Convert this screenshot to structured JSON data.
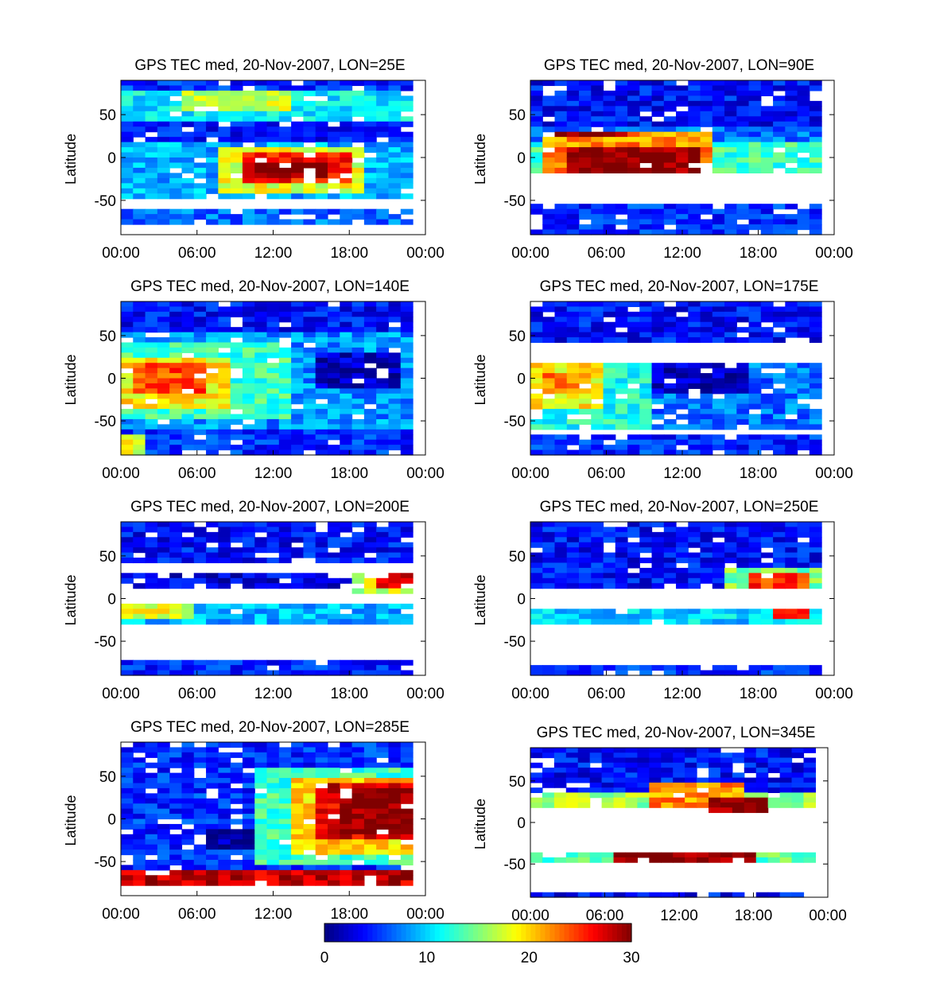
{
  "chart_data": [
    {
      "type": "heatmap",
      "title": "GPS TEC med, 20-Nov-2007, LON=25E",
      "ylabel": "Latitude",
      "xticks": [
        "00:00",
        "06:00",
        "12:00",
        "18:00",
        "00:00"
      ],
      "yticks": [
        "50",
        "0",
        "-50"
      ],
      "ylim": [
        -90,
        90
      ],
      "xlim_hours": [
        0,
        24
      ],
      "features": [
        {
          "t0": 0,
          "t1": 23,
          "l0": 75,
          "l1": 88,
          "v": 5
        },
        {
          "t0": 0,
          "t1": 23,
          "l0": 40,
          "l1": 75,
          "v": 11
        },
        {
          "t0": 5,
          "t1": 13,
          "l0": 55,
          "l1": 75,
          "v": 17
        },
        {
          "t0": 0,
          "t1": 23,
          "l0": 20,
          "l1": 40,
          "v": 4
        },
        {
          "t0": 0,
          "t1": 23,
          "l0": -45,
          "l1": 15,
          "v": 9
        },
        {
          "t0": 8,
          "t1": 19,
          "l0": -40,
          "l1": 12,
          "v": 18
        },
        {
          "t0": 10,
          "t1": 18,
          "l0": -30,
          "l1": 5,
          "v": 26
        },
        {
          "t0": 11,
          "t1": 16,
          "l0": -25,
          "l1": -5,
          "v": 30
        },
        {
          "t0": 0,
          "t1": 23,
          "l0": -80,
          "l1": -62,
          "v": 7
        }
      ]
    },
    {
      "type": "heatmap",
      "title": "GPS TEC med, 20-Nov-2007, LON=90E",
      "ylabel": "Latitude",
      "xticks": [
        "00:00",
        "06:00",
        "12:00",
        "18:00",
        "00:00"
      ],
      "yticks": [
        "50",
        "0",
        "-50"
      ],
      "ylim": [
        -90,
        90
      ],
      "xlim_hours": [
        0,
        24
      ],
      "features": [
        {
          "t0": 0,
          "t1": 23,
          "l0": 35,
          "l1": 88,
          "v": 4
        },
        {
          "t0": 0,
          "t1": 23,
          "l0": 15,
          "l1": 35,
          "v": 7
        },
        {
          "t0": 0,
          "t1": 23,
          "l0": -20,
          "l1": 15,
          "v": 13
        },
        {
          "t0": 1,
          "t1": 14,
          "l0": -15,
          "l1": 28,
          "v": 22
        },
        {
          "t0": 3,
          "t1": 13,
          "l0": -15,
          "l1": 10,
          "v": 30
        },
        {
          "t0": 2,
          "t1": 8,
          "l0": 22,
          "l1": 32,
          "v": 30
        },
        {
          "t0": 0,
          "t1": 23,
          "l0": -88,
          "l1": -55,
          "v": 5
        }
      ]
    },
    {
      "type": "heatmap",
      "title": "GPS TEC med, 20-Nov-2007, LON=140E",
      "ylabel": "Latitude",
      "xticks": [
        "00:00",
        "06:00",
        "12:00",
        "18:00",
        "00:00"
      ],
      "yticks": [
        "50",
        "0",
        "-50"
      ],
      "ylim": [
        -90,
        90
      ],
      "xlim_hours": [
        0,
        24
      ],
      "features": [
        {
          "t0": 0,
          "t1": 23,
          "l0": 55,
          "l1": 88,
          "v": 4
        },
        {
          "t0": 0,
          "t1": 23,
          "l0": -60,
          "l1": 55,
          "v": 8
        },
        {
          "t0": 0,
          "t1": 13,
          "l0": -50,
          "l1": 40,
          "v": 13
        },
        {
          "t0": 0,
          "t1": 9,
          "l0": -35,
          "l1": 25,
          "v": 19
        },
        {
          "t0": 1,
          "t1": 7,
          "l0": -20,
          "l1": 15,
          "v": 24
        },
        {
          "t0": 15,
          "t1": 22,
          "l0": -10,
          "l1": 30,
          "v": 2
        },
        {
          "t0": 0,
          "t1": 23,
          "l0": -88,
          "l1": -60,
          "v": 5
        },
        {
          "t0": 0,
          "t1": 2,
          "l0": -88,
          "l1": -65,
          "v": 18
        }
      ]
    },
    {
      "type": "heatmap",
      "title": "GPS TEC med, 20-Nov-2007, LON=175E",
      "ylabel": "Latitude",
      "xticks": [
        "00:00",
        "06:00",
        "12:00",
        "18:00",
        "00:00"
      ],
      "yticks": [
        "50",
        "0",
        "-50"
      ],
      "ylim": [
        -90,
        90
      ],
      "xlim_hours": [
        0,
        24
      ],
      "features": [
        {
          "t0": 0,
          "t1": 23,
          "l0": 45,
          "l1": 88,
          "v": 4
        },
        {
          "t0": 0,
          "t1": 23,
          "l0": -60,
          "l1": 20,
          "v": 7
        },
        {
          "t0": 0,
          "t1": 10,
          "l0": -60,
          "l1": 20,
          "v": 12
        },
        {
          "t0": 0,
          "t1": 6,
          "l0": -35,
          "l1": 15,
          "v": 19
        },
        {
          "t0": 1,
          "t1": 5,
          "l0": -20,
          "l1": 8,
          "v": 23
        },
        {
          "t0": 10,
          "t1": 17,
          "l0": -20,
          "l1": 20,
          "v": 2
        },
        {
          "t0": 0,
          "t1": 23,
          "l0": -88,
          "l1": -65,
          "v": 5
        }
      ]
    },
    {
      "type": "heatmap",
      "title": "GPS TEC med, 20-Nov-2007, LON=200E",
      "ylabel": "Latitude",
      "xticks": [
        "00:00",
        "06:00",
        "12:00",
        "18:00",
        "00:00"
      ],
      "yticks": [
        "50",
        "0",
        "-50"
      ],
      "ylim": [
        -90,
        90
      ],
      "xlim_hours": [
        0,
        24
      ],
      "features": [
        {
          "t0": 0,
          "t1": 23,
          "l0": 45,
          "l1": 88,
          "v": 4
        },
        {
          "t0": 0,
          "t1": 23,
          "l0": 10,
          "l1": 30,
          "v": 3
        },
        {
          "t0": 18,
          "t1": 23,
          "l0": 8,
          "l1": 30,
          "v": 17
        },
        {
          "t0": 20,
          "t1": 23,
          "l0": 12,
          "l1": 30,
          "v": 27
        },
        {
          "t0": 0,
          "t1": 23,
          "l0": -30,
          "l1": -5,
          "v": 9
        },
        {
          "t0": 0,
          "t1": 6,
          "l0": -25,
          "l1": -5,
          "v": 18
        },
        {
          "t0": 0,
          "t1": 23,
          "l0": -88,
          "l1": -70,
          "v": 5
        }
      ]
    },
    {
      "type": "heatmap",
      "title": "GPS TEC med, 20-Nov-2007, LON=250E",
      "ylabel": "Latitude",
      "xticks": [
        "00:00",
        "06:00",
        "12:00",
        "18:00",
        "00:00"
      ],
      "yticks": [
        "50",
        "0",
        "-50"
      ],
      "ylim": [
        -90,
        90
      ],
      "xlim_hours": [
        0,
        24
      ],
      "features": [
        {
          "t0": 0,
          "t1": 23,
          "l0": 10,
          "l1": 88,
          "v": 4
        },
        {
          "t0": 15,
          "t1": 23,
          "l0": 10,
          "l1": 35,
          "v": 15
        },
        {
          "t0": 17,
          "t1": 22,
          "l0": 12,
          "l1": 30,
          "v": 25
        },
        {
          "t0": 0,
          "t1": 23,
          "l0": -32,
          "l1": -15,
          "v": 10
        },
        {
          "t0": 19,
          "t1": 22,
          "l0": -25,
          "l1": -15,
          "v": 26
        },
        {
          "t0": 0,
          "t1": 23,
          "l0": -88,
          "l1": -80,
          "v": 5
        }
      ]
    },
    {
      "type": "heatmap",
      "title": "GPS TEC med, 20-Nov-2007, LON=285E",
      "ylabel": "Latitude",
      "xticks": [
        "00:00",
        "06:00",
        "12:00",
        "18:00",
        "00:00"
      ],
      "yticks": [
        "50",
        "0",
        "-50"
      ],
      "ylim": [
        -90,
        90
      ],
      "xlim_hours": [
        0,
        24
      ],
      "features": [
        {
          "t0": 0,
          "t1": 23,
          "l0": -60,
          "l1": 88,
          "v": 5
        },
        {
          "t0": 11,
          "t1": 23,
          "l0": -55,
          "l1": 60,
          "v": 13
        },
        {
          "t0": 13,
          "t1": 23,
          "l0": -40,
          "l1": 50,
          "v": 20
        },
        {
          "t0": 15,
          "t1": 23,
          "l0": -25,
          "l1": 40,
          "v": 27
        },
        {
          "t0": 17,
          "t1": 23,
          "l0": -15,
          "l1": 35,
          "v": 30
        },
        {
          "t0": 7,
          "t1": 11,
          "l0": -35,
          "l1": -15,
          "v": 1
        },
        {
          "t0": 0,
          "t1": 23,
          "l0": -75,
          "l1": -60,
          "v": 28
        }
      ]
    },
    {
      "type": "heatmap",
      "title": "GPS TEC med, 20-Nov-2007, LON=345E",
      "ylabel": "Latitude",
      "xticks": [
        "00:00",
        "06:00",
        "12:00",
        "18:00",
        "00:00"
      ],
      "yticks": [
        "50",
        "0",
        "-50"
      ],
      "ylim": [
        -90,
        90
      ],
      "xlim_hours": [
        0,
        24
      ],
      "features": [
        {
          "t0": 0,
          "t1": 23,
          "l0": 35,
          "l1": 88,
          "v": 4
        },
        {
          "t0": 0,
          "t1": 23,
          "l0": 20,
          "l1": 35,
          "v": 16
        },
        {
          "t0": 10,
          "t1": 17,
          "l0": 20,
          "l1": 45,
          "v": 22
        },
        {
          "t0": 14,
          "t1": 19,
          "l0": 15,
          "l1": 30,
          "v": 30
        },
        {
          "t0": 0,
          "t1": 23,
          "l0": -45,
          "l1": -35,
          "v": 14
        },
        {
          "t0": 7,
          "t1": 18,
          "l0": -45,
          "l1": -35,
          "v": 30
        },
        {
          "t0": 0,
          "t1": 23,
          "l0": -88,
          "l1": -85,
          "v": 4
        }
      ]
    }
  ],
  "colorbar": {
    "ticks": [
      "0",
      "10",
      "20",
      "30"
    ],
    "min": 0,
    "max": 30
  }
}
